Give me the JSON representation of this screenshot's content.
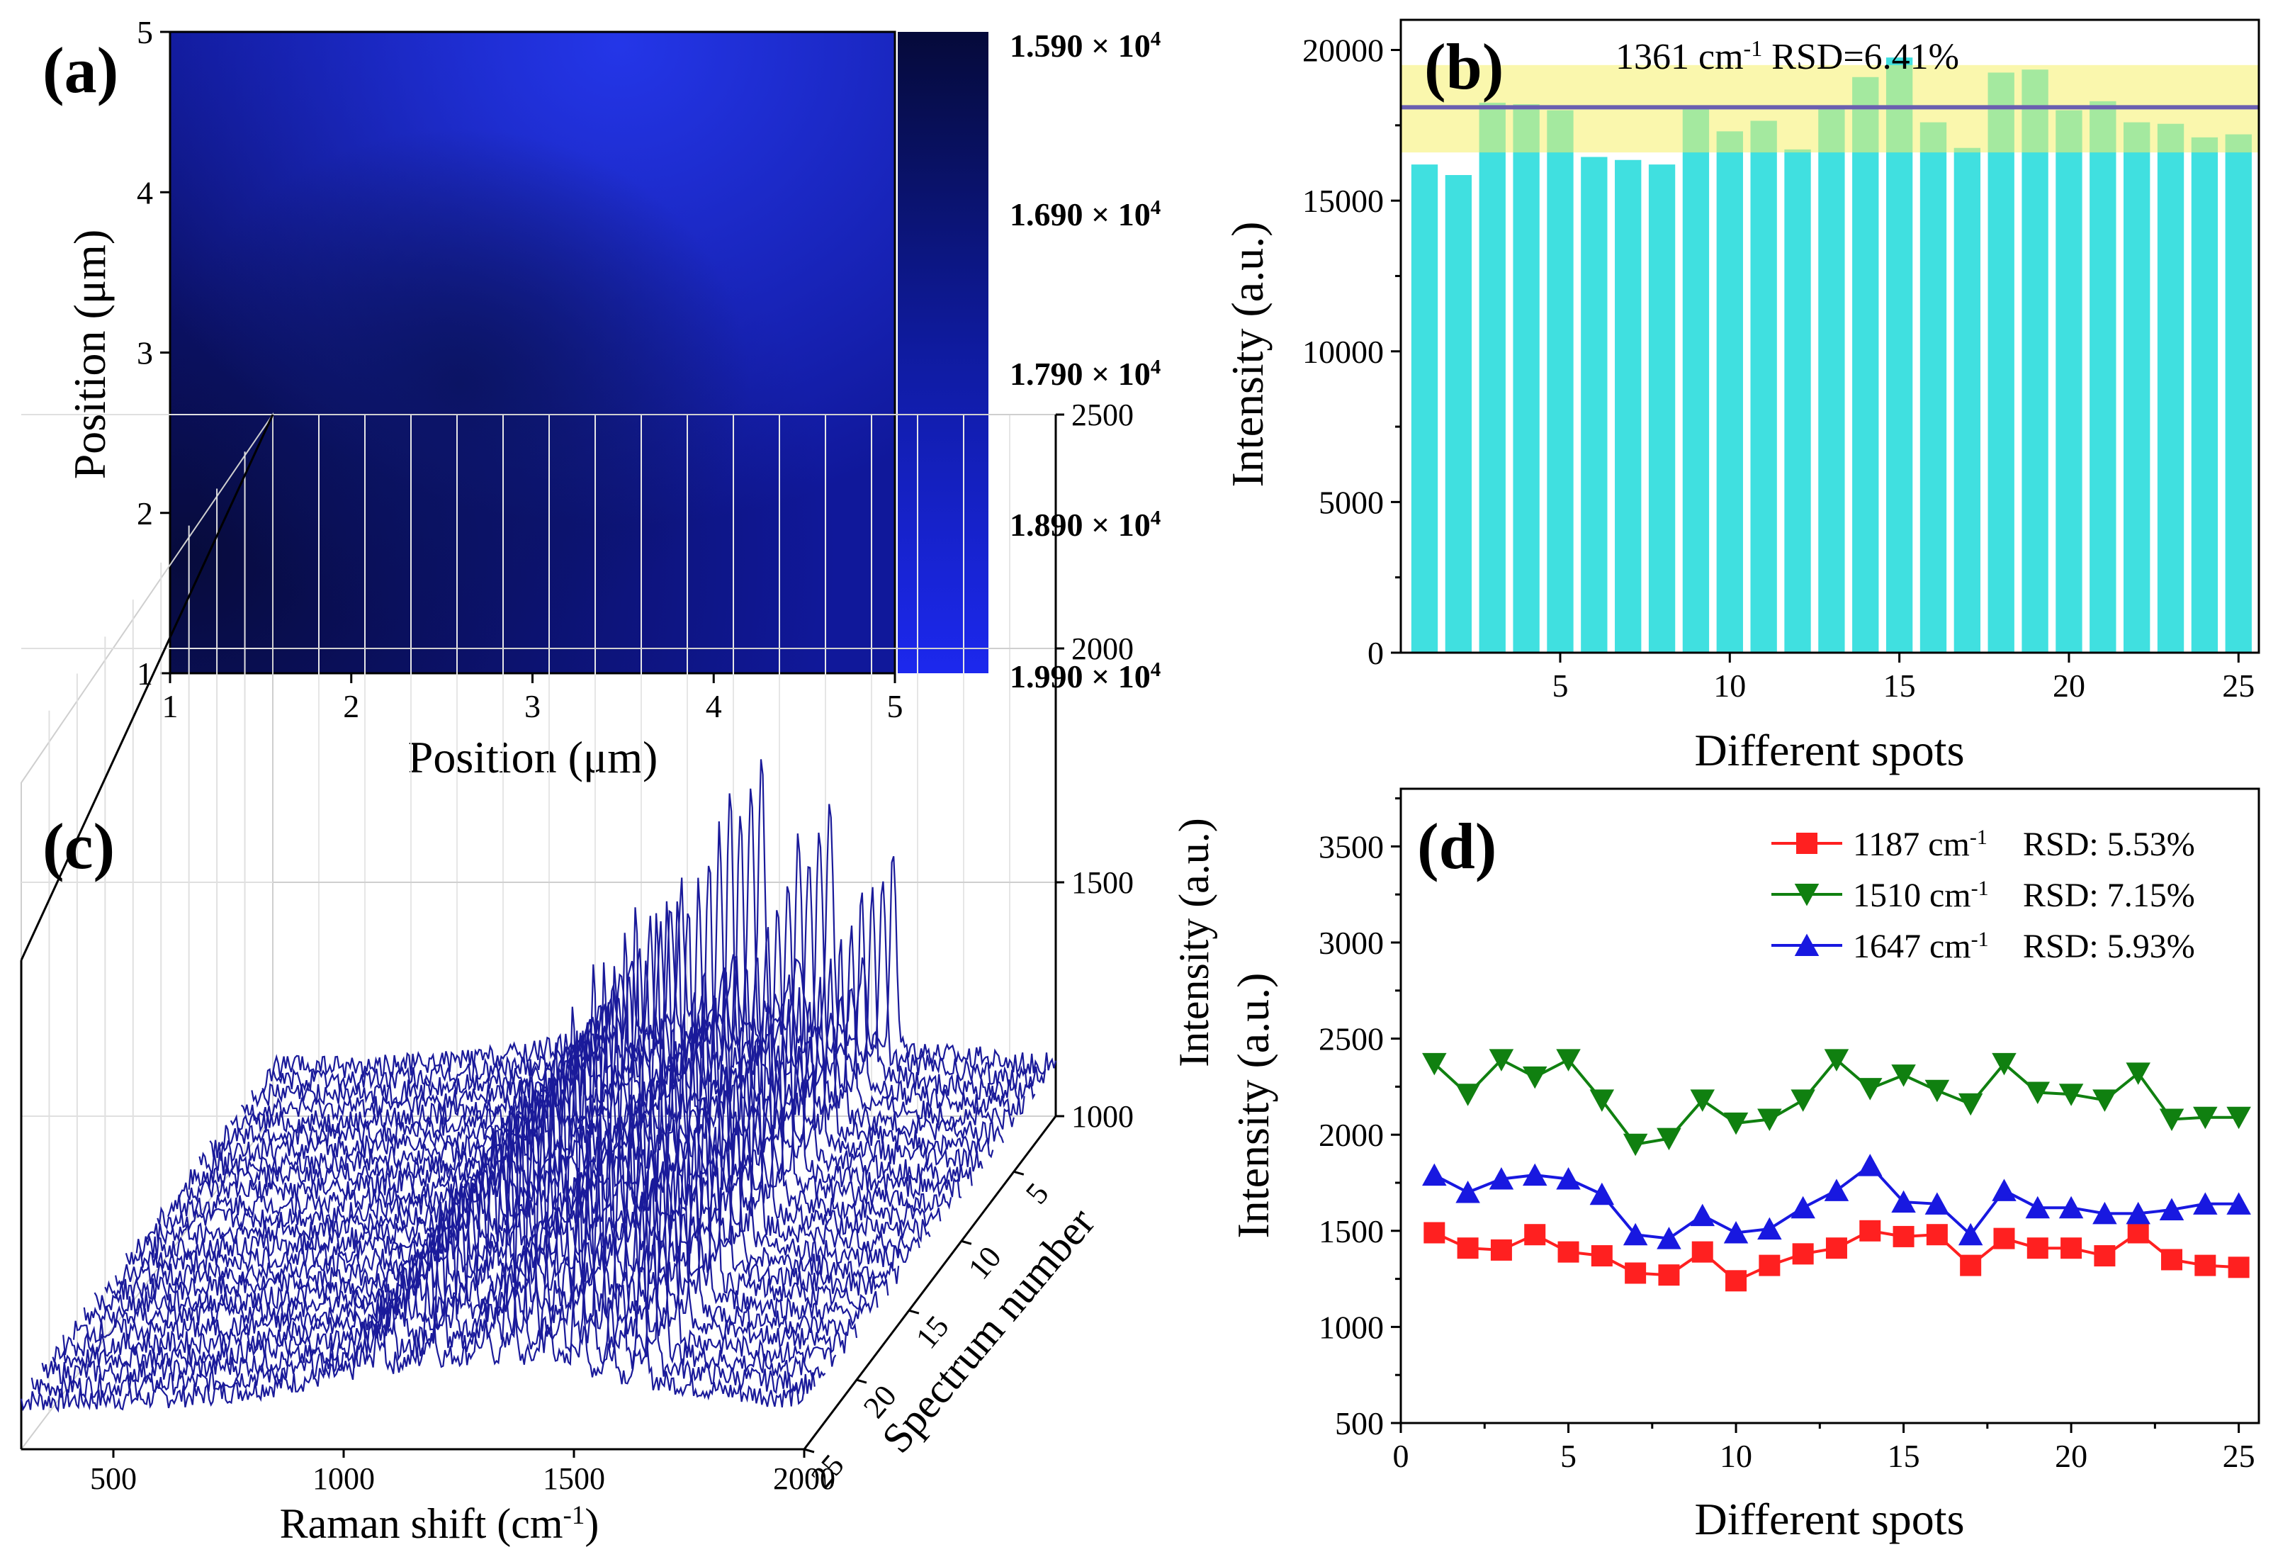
{
  "chart_data": [
    {
      "panel": "(a)",
      "type": "heatmap",
      "xlabel": "Position (μm)",
      "ylabel": "Position (μm)",
      "xlim": [
        1,
        5
      ],
      "ylim": [
        1,
        5
      ],
      "xticks": [
        "1",
        "2",
        "3",
        "4",
        "5"
      ],
      "yticks": [
        "1",
        "2",
        "3",
        "4",
        "5"
      ],
      "colorbar_labels": [
        "1.590 × 10⁴",
        "1.690 × 10⁴",
        "1.790 × 10⁴",
        "1.890 × 10⁴",
        "1.990 × 10⁴"
      ],
      "colors": {
        "low": "#0a0f4a",
        "mid": "#1a28b0",
        "high": "#1f2ff0"
      }
    },
    {
      "panel": "(b)",
      "type": "bar",
      "annotation": "1361 cm⁻¹  RSD=6.41%",
      "xlabel": "Different spots",
      "ylabel": "Intensity (a.u.)",
      "ylim": [
        0,
        21000
      ],
      "xlim": [
        0.3,
        25.6
      ],
      "xticks": [
        "5",
        "10",
        "15",
        "20",
        "25"
      ],
      "yticks": [
        "0",
        "5000",
        "10000",
        "15000",
        "20000"
      ],
      "mean_line": 18100,
      "band": [
        16600,
        19500
      ],
      "x": [
        1,
        2,
        3,
        4,
        5,
        6,
        7,
        8,
        9,
        10,
        11,
        12,
        13,
        14,
        15,
        16,
        17,
        18,
        19,
        20,
        21,
        22,
        23,
        24,
        25
      ],
      "values": [
        16200,
        15850,
        18250,
        18200,
        18000,
        16450,
        16350,
        16200,
        18050,
        17300,
        17650,
        16700,
        18050,
        19100,
        19750,
        17600,
        16750,
        19250,
        19350,
        18000,
        18300,
        17600,
        17550,
        17100,
        17200
      ],
      "colors": {
        "bar": "#40e0e0",
        "band": "#f5f06a",
        "line": "#6a5fb0"
      }
    },
    {
      "panel": "(c)",
      "type": "line",
      "subtype": "waterfall-3d",
      "xlabel": "Raman shift (cm⁻¹)",
      "ylabel": "Spectrum number",
      "zlabel": "Intensity (a.u.)",
      "xticks": [
        "500",
        "1000",
        "1500",
        "2000"
      ],
      "yticks": [
        "5",
        "10",
        "15",
        "20",
        "25"
      ],
      "zticks": [
        "1000",
        "1500",
        "2000",
        "2500"
      ],
      "xlim": [
        300,
        2000
      ],
      "zlim": [
        1000,
        2500
      ],
      "spectra_count": 25,
      "peaks_cm": [
        1187,
        1361,
        1510,
        1647
      ],
      "color": "#1a1a9a"
    },
    {
      "panel": "(d)",
      "type": "line",
      "xlabel": "Different spots",
      "ylabel": "Intensity (a.u.)",
      "xlim": [
        0,
        25.6
      ],
      "ylim": [
        500,
        3800
      ],
      "xticks": [
        "0",
        "5",
        "10",
        "15",
        "20",
        "25"
      ],
      "yticks": [
        "500",
        "1000",
        "1500",
        "2000",
        "2500",
        "3000",
        "3500"
      ],
      "x": [
        1,
        2,
        3,
        4,
        5,
        6,
        7,
        8,
        9,
        10,
        11,
        12,
        13,
        14,
        15,
        16,
        17,
        18,
        19,
        20,
        21,
        22,
        23,
        24,
        25
      ],
      "series": [
        {
          "name": "1187 cm⁻¹",
          "rsd": "RSD: 5.53%",
          "color": "#ff2020",
          "marker": "square",
          "values": [
            1490,
            1410,
            1400,
            1480,
            1390,
            1370,
            1280,
            1270,
            1390,
            1240,
            1320,
            1380,
            1410,
            1500,
            1470,
            1480,
            1320,
            1460,
            1410,
            1410,
            1370,
            1490,
            1350,
            1320,
            1310
          ]
        },
        {
          "name": "1510 cm⁻¹",
          "rsd": "RSD: 7.15%",
          "color": "#108010",
          "marker": "triangle-down",
          "values": [
            2370,
            2210,
            2390,
            2300,
            2390,
            2180,
            1950,
            1980,
            2180,
            2060,
            2080,
            2180,
            2390,
            2240,
            2310,
            2230,
            2160,
            2370,
            2220,
            2210,
            2180,
            2320,
            2080,
            2090,
            2090
          ]
        },
        {
          "name": "1647 cm⁻¹",
          "rsd": "RSD: 5.93%",
          "color": "#1818e0",
          "marker": "triangle-up",
          "values": [
            1790,
            1700,
            1770,
            1790,
            1770,
            1690,
            1480,
            1460,
            1580,
            1490,
            1510,
            1620,
            1710,
            1840,
            1650,
            1640,
            1480,
            1710,
            1620,
            1620,
            1590,
            1590,
            1610,
            1640,
            1640
          ]
        }
      ]
    }
  ]
}
